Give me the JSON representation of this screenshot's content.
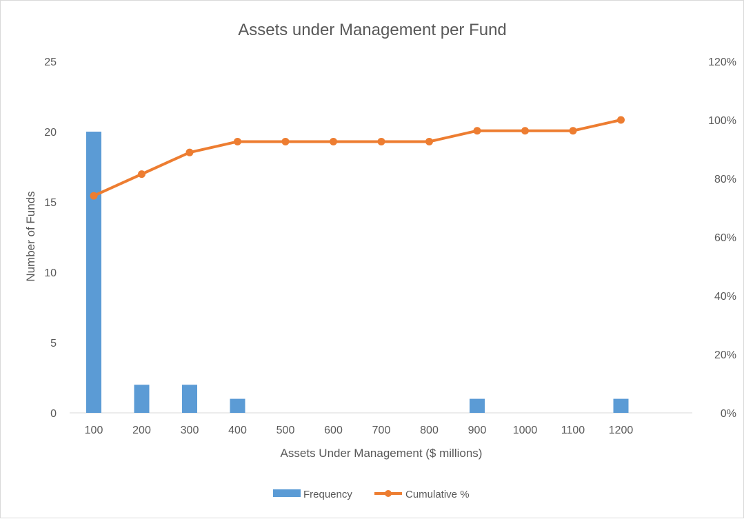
{
  "chart_data": {
    "type": "bar",
    "title": "Assets under Management per Fund",
    "xlabel": "Assets Under Management ($ millions)",
    "ylabel": "Number of Funds",
    "y2label": "",
    "categories": [
      "100",
      "200",
      "300",
      "400",
      "500",
      "600",
      "700",
      "800",
      "900",
      "1000",
      "1100",
      "1200"
    ],
    "ylim": [
      0,
      25
    ],
    "y_ticks": [
      "0",
      "5",
      "10",
      "15",
      "20",
      "25"
    ],
    "y2lim": [
      0,
      120
    ],
    "y2_ticks": [
      "0%",
      "20%",
      "40%",
      "60%",
      "80%",
      "100%",
      "120%"
    ],
    "grid": false,
    "legend_position": "bottom",
    "series": [
      {
        "name": "Frequency",
        "type": "bar",
        "axis": "left",
        "color": "#5b9bd5",
        "values": [
          20,
          2,
          2,
          1,
          0,
          0,
          0,
          0,
          1,
          0,
          0,
          1
        ]
      },
      {
        "name": "Cumulative %",
        "type": "line",
        "axis": "right",
        "color": "#ed7d31",
        "values": [
          74.1,
          81.5,
          88.9,
          92.6,
          92.6,
          92.6,
          92.6,
          92.6,
          96.3,
          96.3,
          96.3,
          100.0
        ]
      }
    ]
  }
}
